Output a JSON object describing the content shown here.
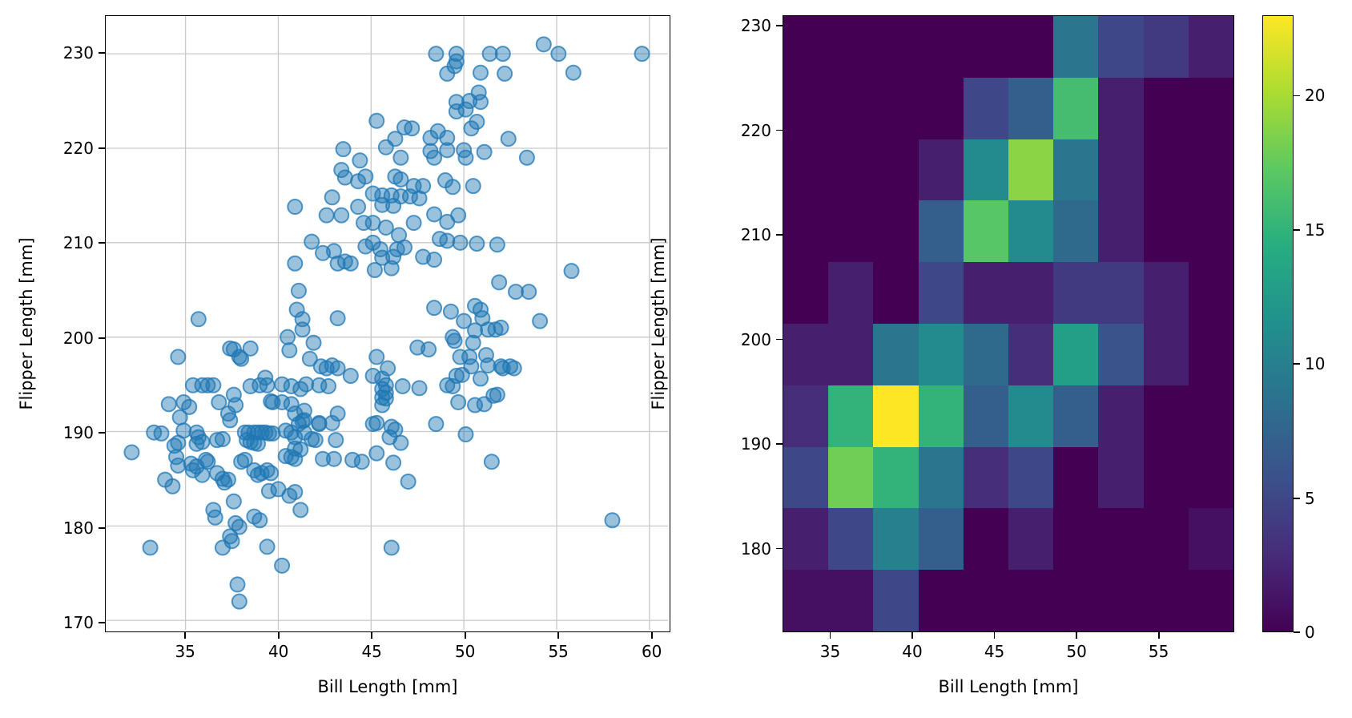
{
  "figure": {
    "background": "#ffffff"
  },
  "left_plot": {
    "xlabel": "Bill Length [mm]",
    "ylabel": "Flipper Length [mm]",
    "xticks": [
      35,
      40,
      45,
      50,
      55,
      60
    ],
    "yticks": [
      170,
      180,
      190,
      200,
      210,
      220,
      230
    ],
    "xlim": [
      30.7,
      61.0
    ],
    "ylim": [
      169.0,
      234.0
    ],
    "grid": true,
    "grid_color": "#c9c9c9",
    "marker_color": "#1f77b4",
    "marker_alpha": 0.5
  },
  "right_plot": {
    "xlabel": "Bill Length [mm]",
    "ylabel": "Flipper Length [mm]",
    "xticks": [
      35,
      40,
      45,
      50,
      55
    ],
    "yticks": [
      180,
      190,
      200,
      210,
      220,
      230
    ],
    "xlim": [
      32.1,
      59.6
    ],
    "ylim": [
      172.0,
      231.0
    ],
    "grid": false
  },
  "colorbar": {
    "ticks": [
      0,
      5,
      10,
      15,
      20
    ],
    "vmin": 0,
    "vmax": 23,
    "colormap": "viridis"
  },
  "chart_data": [
    {
      "type": "scatter",
      "title": "",
      "xlabel": "Bill Length [mm]",
      "ylabel": "Flipper Length [mm]",
      "xlim": [
        30.7,
        61.0
      ],
      "ylim": [
        169.0,
        234.0
      ],
      "legend": false,
      "points": [
        [
          43.5,
          219.9
        ],
        [
          44.4,
          218.7
        ],
        [
          43.4,
          217.7
        ],
        [
          43.6,
          216.9
        ],
        [
          44.3,
          216.5
        ],
        [
          42.9,
          214.8
        ],
        [
          40.9,
          213.8
        ],
        [
          42.6,
          212.9
        ],
        [
          43.4,
          212.9
        ],
        [
          44.3,
          213.8
        ],
        [
          44.6,
          212.1
        ],
        [
          41.8,
          210.1
        ],
        [
          42.4,
          208.9
        ],
        [
          43.0,
          209.1
        ],
        [
          43.2,
          207.8
        ],
        [
          43.6,
          208.0
        ],
        [
          43.9,
          207.8
        ],
        [
          40.9,
          207.8
        ],
        [
          41.1,
          204.9
        ],
        [
          41.0,
          202.9
        ],
        [
          41.3,
          201.9
        ],
        [
          35.7,
          201.9
        ],
        [
          43.2,
          202.0
        ],
        [
          48.5,
          230
        ],
        [
          49.6,
          230
        ],
        [
          49.6,
          229.2
        ],
        [
          49.5,
          228.7
        ],
        [
          51.4,
          230
        ],
        [
          52.1,
          230
        ],
        [
          54.3,
          231
        ],
        [
          55.1,
          230
        ],
        [
          55.9,
          228
        ],
        [
          59.6,
          230
        ],
        [
          49.1,
          227.9
        ],
        [
          50.9,
          228
        ],
        [
          52.2,
          227.9
        ],
        [
          50.8,
          225.9
        ],
        [
          49.6,
          224.9
        ],
        [
          50.3,
          225
        ],
        [
          50.9,
          224.9
        ],
        [
          49.6,
          223.9
        ],
        [
          50.1,
          224.1
        ],
        [
          50.7,
          222.8
        ],
        [
          50.4,
          222.1
        ],
        [
          45.3,
          222.9
        ],
        [
          46.8,
          222.2
        ],
        [
          47.2,
          222.1
        ],
        [
          46.3,
          221
        ],
        [
          48.6,
          221.8
        ],
        [
          48.2,
          221.1
        ],
        [
          49.1,
          221.1
        ],
        [
          52.4,
          221
        ],
        [
          45.8,
          220.1
        ],
        [
          46.6,
          219
        ],
        [
          48.2,
          219.7
        ],
        [
          48.4,
          219
        ],
        [
          49.1,
          219.8
        ],
        [
          50.0,
          219.8
        ],
        [
          50.1,
          219
        ],
        [
          53.4,
          219
        ],
        [
          51.1,
          219.6
        ],
        [
          44.7,
          217
        ],
        [
          46.3,
          217
        ],
        [
          46.6,
          216.7
        ],
        [
          47.3,
          216
        ],
        [
          47.8,
          216
        ],
        [
          49.0,
          216.6
        ],
        [
          49.4,
          215.9
        ],
        [
          50.5,
          216
        ],
        [
          45.1,
          215.2
        ],
        [
          45.6,
          215
        ],
        [
          46.1,
          215
        ],
        [
          46.6,
          214.9
        ],
        [
          47.1,
          214.9
        ],
        [
          47.6,
          214.7
        ],
        [
          45.6,
          214
        ],
        [
          46.2,
          213.9
        ],
        [
          48.4,
          213
        ],
        [
          49.1,
          212.2
        ],
        [
          49.7,
          212.9
        ],
        [
          45.1,
          212.1
        ],
        [
          45.8,
          211.6
        ],
        [
          47.3,
          212.1
        ],
        [
          46.5,
          210.8
        ],
        [
          48.7,
          210.4
        ],
        [
          49.1,
          210.2
        ],
        [
          49.8,
          210
        ],
        [
          45.1,
          210
        ],
        [
          44.7,
          209.6
        ],
        [
          45.5,
          209.3
        ],
        [
          46.4,
          209.3
        ],
        [
          46.8,
          209.5
        ],
        [
          50.7,
          209.9
        ],
        [
          51.8,
          209.8
        ],
        [
          45.6,
          208.4
        ],
        [
          46.2,
          208.5
        ],
        [
          47.8,
          208.5
        ],
        [
          48.4,
          208.2
        ],
        [
          45.2,
          207.1
        ],
        [
          46.1,
          207.3
        ],
        [
          55.8,
          207
        ],
        [
          51.9,
          205.8
        ],
        [
          52.8,
          204.8
        ],
        [
          53.5,
          204.8
        ],
        [
          48.4,
          203.1
        ],
        [
          49.3,
          202.7
        ],
        [
          50.6,
          203.3
        ],
        [
          50.9,
          202.9
        ],
        [
          50.0,
          201.7
        ],
        [
          51.0,
          202
        ],
        [
          54.1,
          201.7
        ],
        [
          37.4,
          198.8
        ],
        [
          37.6,
          198.7
        ],
        [
          37.9,
          197.9
        ],
        [
          38.0,
          197.7
        ],
        [
          38.5,
          198.8
        ],
        [
          34.6,
          197.9
        ],
        [
          41.3,
          200.8
        ],
        [
          40.5,
          200
        ],
        [
          40.6,
          198.6
        ],
        [
          41.9,
          199.4
        ],
        [
          41.7,
          197.7
        ],
        [
          42.3,
          196.9
        ],
        [
          42.6,
          196.7
        ],
        [
          42.9,
          197
        ],
        [
          43.2,
          196.7
        ],
        [
          43.9,
          195.9
        ],
        [
          35.4,
          194.9
        ],
        [
          35.9,
          194.9
        ],
        [
          36.2,
          194.9
        ],
        [
          36.5,
          194.9
        ],
        [
          38.5,
          194.8
        ],
        [
          39.0,
          194.9
        ],
        [
          39.3,
          195.7
        ],
        [
          39.4,
          194.9
        ],
        [
          40.2,
          195
        ],
        [
          40.7,
          194.8
        ],
        [
          41.2,
          194.5
        ],
        [
          41.5,
          195
        ],
        [
          42.2,
          194.9
        ],
        [
          42.7,
          194.8
        ],
        [
          34.1,
          192.9
        ],
        [
          34.9,
          193.1
        ],
        [
          35.2,
          192.6
        ],
        [
          36.8,
          193.1
        ],
        [
          37.6,
          193.9
        ],
        [
          37.7,
          192.8
        ],
        [
          37.3,
          191.9
        ],
        [
          37.4,
          191.2
        ],
        [
          39.6,
          193.2
        ],
        [
          39.7,
          193.1
        ],
        [
          40.2,
          193.1
        ],
        [
          40.7,
          192.9
        ],
        [
          40.9,
          191.9
        ],
        [
          41.4,
          192.2
        ],
        [
          41.4,
          191.2
        ],
        [
          42.2,
          190.9
        ],
        [
          43.2,
          191.9
        ],
        [
          33.3,
          189.9
        ],
        [
          33.7,
          189.8
        ],
        [
          34.7,
          191.5
        ],
        [
          34.9,
          190.1
        ],
        [
          34.6,
          188.8
        ],
        [
          34.4,
          188.5
        ],
        [
          35.6,
          189.9
        ],
        [
          35.7,
          189.4
        ],
        [
          35.9,
          188.9
        ],
        [
          35.6,
          188.7
        ],
        [
          36.7,
          189.1
        ],
        [
          37.0,
          189.2
        ],
        [
          38.2,
          189.9
        ],
        [
          38.4,
          189.9
        ],
        [
          38.7,
          189.9
        ],
        [
          38.9,
          189.9
        ],
        [
          39.1,
          189.9
        ],
        [
          39.3,
          189.9
        ],
        [
          39.5,
          189.8
        ],
        [
          39.7,
          189.8
        ],
        [
          38.3,
          189.1
        ],
        [
          38.5,
          188.9
        ],
        [
          38.7,
          188.8
        ],
        [
          38.9,
          188.7
        ],
        [
          40.4,
          190.1
        ],
        [
          40.7,
          189.9
        ],
        [
          40.9,
          189.4
        ],
        [
          41.1,
          190.8
        ],
        [
          41.3,
          191.1
        ],
        [
          41.4,
          189.9
        ],
        [
          41.8,
          189.2
        ],
        [
          42.0,
          189.1
        ],
        [
          42.2,
          190.8
        ],
        [
          42.9,
          190.9
        ],
        [
          43.1,
          189.1
        ],
        [
          32.1,
          187.8
        ],
        [
          33.9,
          184.9
        ],
        [
          34.3,
          184.2
        ],
        [
          34.5,
          187.3
        ],
        [
          34.6,
          186.4
        ],
        [
          35.3,
          186.6
        ],
        [
          35.4,
          185.9
        ],
        [
          35.6,
          186.3
        ],
        [
          35.9,
          185.4
        ],
        [
          36.1,
          187
        ],
        [
          36.2,
          186.8
        ],
        [
          36.7,
          185.6
        ],
        [
          37.0,
          185
        ],
        [
          37.1,
          184.6
        ],
        [
          37.3,
          184.9
        ],
        [
          38.0,
          186.8
        ],
        [
          38.2,
          187
        ],
        [
          38.7,
          185.9
        ],
        [
          38.9,
          185.4
        ],
        [
          39.1,
          185.6
        ],
        [
          39.4,
          185.9
        ],
        [
          39.6,
          185.6
        ],
        [
          40.4,
          187.4
        ],
        [
          40.7,
          187.3
        ],
        [
          40.9,
          187.1
        ],
        [
          40.9,
          188.2
        ],
        [
          41.2,
          188.1
        ],
        [
          42.4,
          187.1
        ],
        [
          43.0,
          187.1
        ],
        [
          44.0,
          187
        ],
        [
          44.5,
          186.8
        ],
        [
          39.5,
          183.7
        ],
        [
          40.0,
          183.9
        ],
        [
          40.6,
          183.2
        ],
        [
          40.9,
          183.6
        ],
        [
          41.2,
          181.7
        ],
        [
          36.5,
          181.7
        ],
        [
          36.6,
          180.9
        ],
        [
          37.6,
          182.6
        ],
        [
          37.7,
          180.3
        ],
        [
          37.9,
          179.9
        ],
        [
          38.7,
          181
        ],
        [
          39.0,
          180.6
        ],
        [
          37.4,
          178.9
        ],
        [
          37.5,
          178.4
        ],
        [
          37.0,
          177.7
        ],
        [
          39.4,
          177.8
        ],
        [
          33.1,
          177.7
        ],
        [
          40.2,
          175.8
        ],
        [
          37.8,
          173.8
        ],
        [
          37.9,
          172
        ],
        [
          45.3,
          197.9
        ],
        [
          45.9,
          196.7
        ],
        [
          45.1,
          195.9
        ],
        [
          45.6,
          195.6
        ],
        [
          45.8,
          194.9
        ],
        [
          45.6,
          194.5
        ],
        [
          45.8,
          194.1
        ],
        [
          45.6,
          193.6
        ],
        [
          45.8,
          193.5
        ],
        [
          45.6,
          192.8
        ],
        [
          46.7,
          194.8
        ],
        [
          47.6,
          194.6
        ],
        [
          47.5,
          198.9
        ],
        [
          48.1,
          198.7
        ],
        [
          49.4,
          200
        ],
        [
          49.5,
          199.6
        ],
        [
          50.5,
          199.4
        ],
        [
          50.6,
          200.7
        ],
        [
          51.3,
          200.8
        ],
        [
          51.7,
          200.8
        ],
        [
          52.0,
          201
        ],
        [
          49.8,
          197.9
        ],
        [
          50.3,
          197.9
        ],
        [
          50.4,
          196.9
        ],
        [
          51.2,
          198.1
        ],
        [
          51.3,
          197
        ],
        [
          52.0,
          196.9
        ],
        [
          52.1,
          196.7
        ],
        [
          52.5,
          196.9
        ],
        [
          52.7,
          196.7
        ],
        [
          50.9,
          195.6
        ],
        [
          49.1,
          194.9
        ],
        [
          49.4,
          194.8
        ],
        [
          49.6,
          195.9
        ],
        [
          49.9,
          196
        ],
        [
          49.7,
          193.1
        ],
        [
          50.6,
          192.8
        ],
        [
          51.1,
          192.9
        ],
        [
          51.6,
          193.8
        ],
        [
          51.8,
          193.9
        ],
        [
          45.3,
          190.9
        ],
        [
          45.1,
          190.8
        ],
        [
          46.1,
          190.5
        ],
        [
          46.3,
          190.2
        ],
        [
          46.0,
          189.4
        ],
        [
          46.6,
          188.8
        ],
        [
          48.5,
          190.8
        ],
        [
          50.1,
          189.7
        ],
        [
          45.3,
          187.7
        ],
        [
          46.2,
          186.7
        ],
        [
          47.0,
          184.7
        ],
        [
          51.5,
          186.8
        ],
        [
          58.0,
          180.6
        ],
        [
          46.1,
          177.7
        ]
      ]
    },
    {
      "type": "heatmap",
      "title": "",
      "xlabel": "Bill Length [mm]",
      "ylabel": "Flipper Length [mm]",
      "colormap": "viridis",
      "vmin": 0,
      "vmax": 23,
      "x_bin_edges": [
        32.1,
        34.85,
        37.6,
        40.35,
        43.1,
        45.85,
        48.6,
        51.35,
        54.1,
        56.85,
        59.6
      ],
      "y_bin_edges": [
        172.0,
        177.9,
        183.8,
        189.7,
        195.6,
        201.5,
        207.4,
        213.3,
        219.2,
        225.1,
        231.0
      ],
      "rows_top_to_bottom": true,
      "values": [
        [
          0,
          0,
          0,
          0,
          0,
          0,
          9,
          5,
          4,
          2
        ],
        [
          0,
          0,
          0,
          0,
          5,
          7,
          16,
          2,
          0,
          0
        ],
        [
          0,
          0,
          0,
          2,
          11,
          19,
          9,
          2,
          0,
          0
        ],
        [
          0,
          0,
          0,
          7,
          17,
          11,
          8,
          2,
          0,
          0
        ],
        [
          0,
          2,
          0,
          5,
          2,
          2,
          4,
          4,
          2,
          0
        ],
        [
          2,
          2,
          9,
          11,
          8,
          3,
          13,
          6,
          2,
          0
        ],
        [
          3,
          15,
          23,
          15,
          7,
          11,
          7,
          2,
          0,
          0
        ],
        [
          5,
          18,
          15,
          9,
          3,
          5,
          0,
          2,
          0,
          0
        ],
        [
          2,
          5,
          10,
          7,
          0,
          2,
          0,
          0,
          0,
          1
        ],
        [
          1,
          1,
          5,
          0,
          0,
          0,
          0,
          0,
          0,
          0
        ]
      ]
    }
  ]
}
